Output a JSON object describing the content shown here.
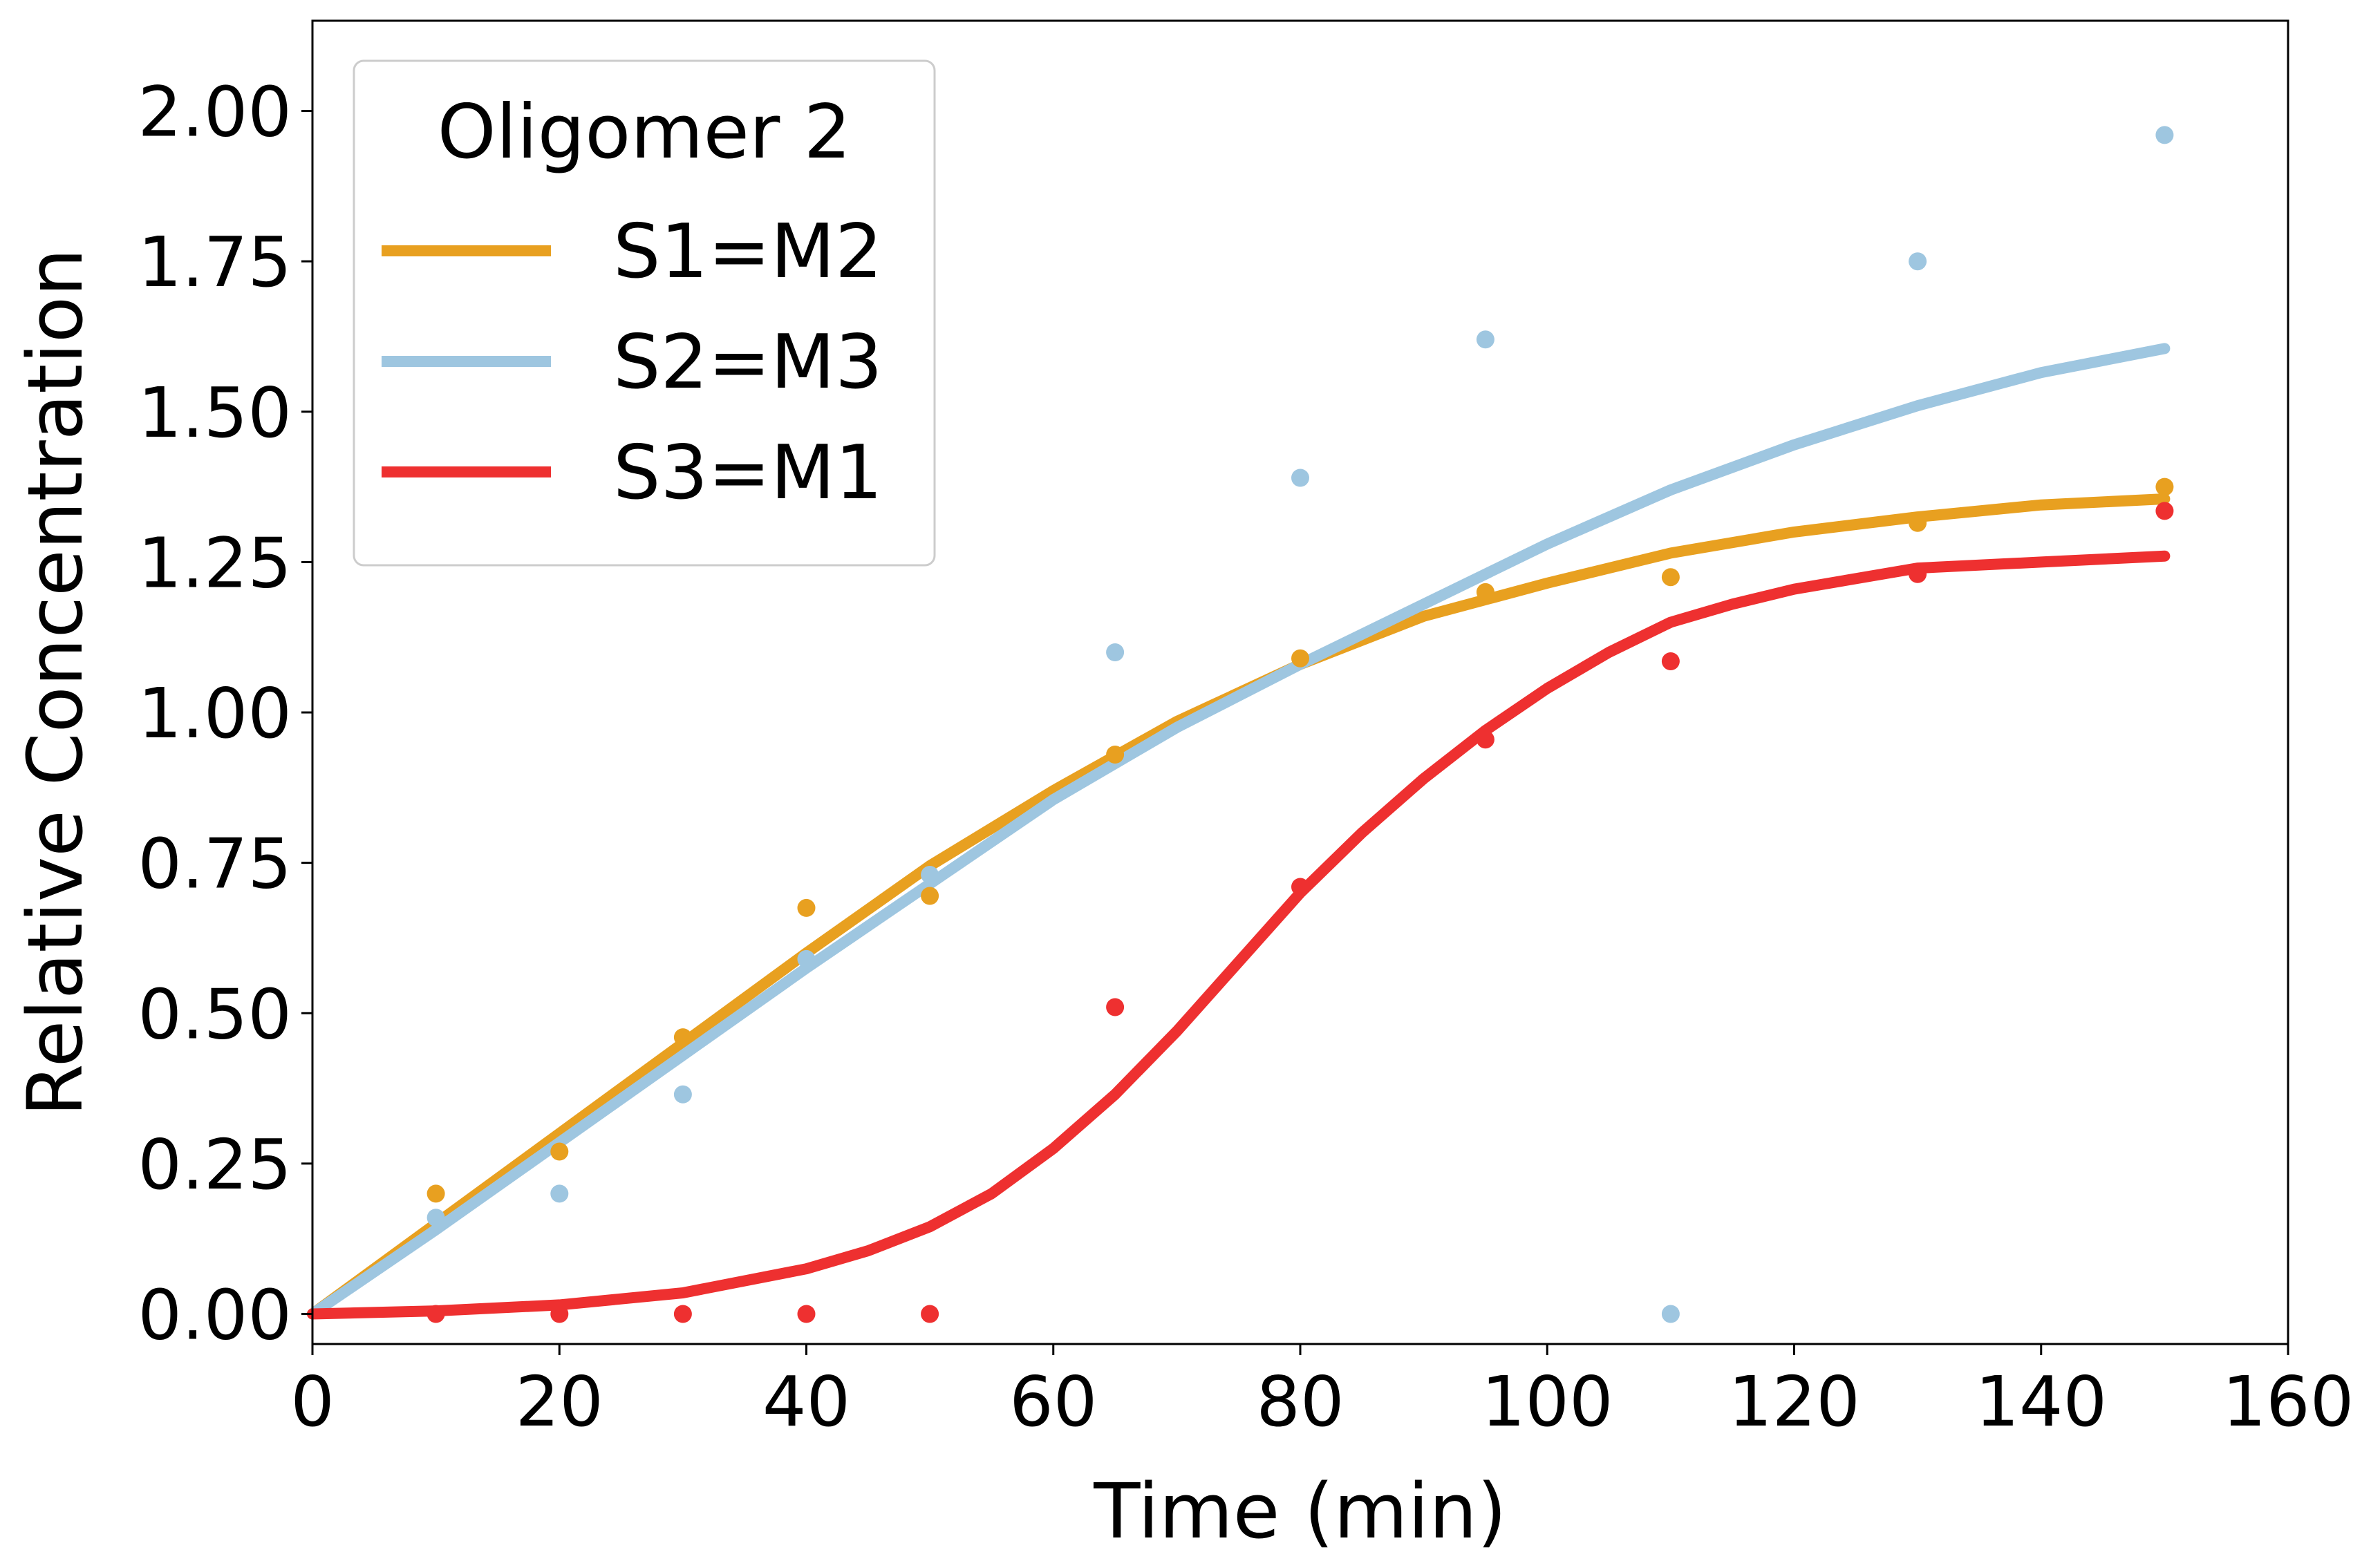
{
  "chart_data": {
    "type": "line",
    "xlabel": "Time (min)",
    "ylabel": "Relative Concentration",
    "xlim": [
      0,
      160
    ],
    "ylim": [
      -0.05,
      2.15
    ],
    "xticks": [
      0,
      20,
      40,
      60,
      80,
      100,
      120,
      140,
      160
    ],
    "xtick_labels": [
      "0",
      "20",
      "40",
      "60",
      "80",
      "100",
      "120",
      "140",
      "160"
    ],
    "yticks": [
      0,
      0.25,
      0.5,
      0.75,
      1.0,
      1.25,
      1.5,
      1.75,
      2.0
    ],
    "ytick_labels": [
      "0.00",
      "0.25",
      "0.50",
      "0.75",
      "1.00",
      "1.25",
      "1.50",
      "1.75",
      "2.00"
    ],
    "grid": false,
    "legend": {
      "title": "Oligomer 2",
      "placement": "top-left",
      "entries": [
        "S1=M2",
        "S2=M3",
        "S3=M1"
      ]
    },
    "series": [
      {
        "name": "S1=M2",
        "color": "#E8A020",
        "points": {
          "x": [
            10,
            20,
            30,
            40,
            50,
            65,
            80,
            95,
            110,
            130,
            150
          ],
          "y": [
            0.2,
            0.27,
            0.46,
            0.675,
            0.695,
            0.93,
            1.09,
            1.2,
            1.225,
            1.315,
            1.375
          ]
        },
        "fit": {
          "x": [
            0,
            10,
            20,
            30,
            40,
            50,
            60,
            70,
            80,
            90,
            100,
            110,
            120,
            130,
            140,
            150
          ],
          "y": [
            0.0,
            0.15,
            0.3,
            0.45,
            0.6,
            0.745,
            0.87,
            0.985,
            1.08,
            1.16,
            1.215,
            1.265,
            1.3,
            1.325,
            1.345,
            1.355
          ]
        }
      },
      {
        "name": "S2=M3",
        "color": "#9EC6E0",
        "points": {
          "x": [
            10,
            20,
            30,
            40,
            50,
            65,
            80,
            95,
            110,
            130,
            150
          ],
          "y": [
            0.16,
            0.2,
            0.365,
            0.59,
            0.73,
            1.1,
            1.39,
            1.62,
            0.0,
            1.75,
            1.96
          ]
        },
        "fit": {
          "x": [
            0,
            10,
            20,
            30,
            40,
            50,
            60,
            70,
            80,
            90,
            100,
            110,
            120,
            130,
            140,
            150
          ],
          "y": [
            0.0,
            0.14,
            0.285,
            0.43,
            0.575,
            0.715,
            0.855,
            0.975,
            1.08,
            1.18,
            1.28,
            1.37,
            1.445,
            1.51,
            1.565,
            1.605
          ]
        }
      },
      {
        "name": "S3=M1",
        "color": "#EE3030",
        "points": {
          "x": [
            10,
            20,
            30,
            40,
            50,
            65,
            80,
            95,
            110,
            130,
            150
          ],
          "y": [
            0.0,
            0.0,
            0.0,
            0.0,
            0.0,
            0.51,
            0.71,
            0.955,
            1.085,
            1.23,
            1.335
          ]
        },
        "fit": {
          "x": [
            0,
            10,
            20,
            30,
            40,
            45,
            50,
            55,
            60,
            65,
            70,
            75,
            80,
            85,
            90,
            95,
            100,
            105,
            110,
            115,
            120,
            130,
            140,
            150
          ],
          "y": [
            0.0,
            0.005,
            0.015,
            0.035,
            0.075,
            0.105,
            0.145,
            0.2,
            0.275,
            0.365,
            0.47,
            0.585,
            0.7,
            0.8,
            0.89,
            0.97,
            1.04,
            1.1,
            1.15,
            1.18,
            1.205,
            1.24,
            1.25,
            1.26
          ]
        }
      }
    ]
  }
}
